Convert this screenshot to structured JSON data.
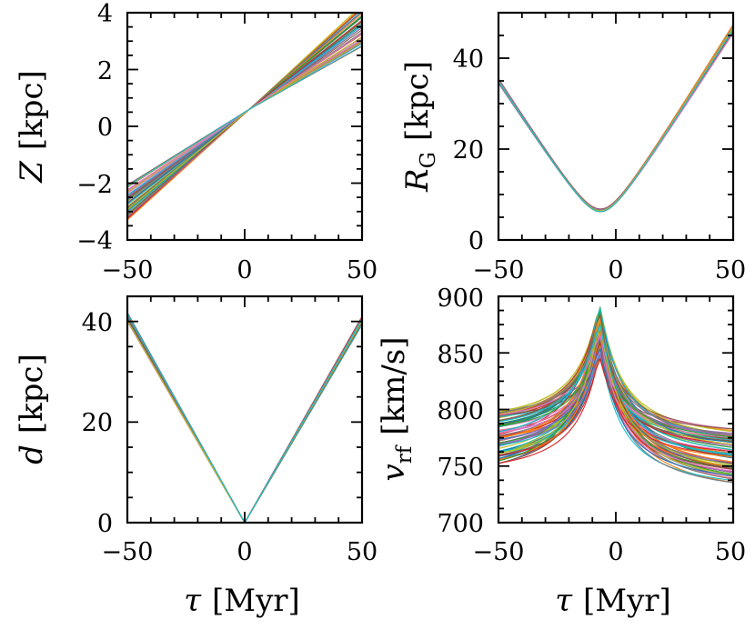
{
  "figure": {
    "xlabel_symbol": "τ",
    "xlabel_unit": "[Myr]"
  },
  "chart_data": [
    {
      "id": "z",
      "type": "line",
      "title": "",
      "xlabel": "τ [Myr]",
      "ylabel": "Z [kpc]",
      "ylabel_symbol": "Z",
      "ylabel_sub": "",
      "ylabel_unit": "[kpc]",
      "xlim": [
        -50,
        50
      ],
      "ylim": [
        -4,
        4
      ],
      "xticks": [
        -50,
        0,
        50
      ],
      "yticks": [
        -4,
        -2,
        0,
        2,
        4
      ],
      "xtick_labels": [
        "−50",
        "0",
        "50"
      ],
      "ytick_labels": [
        "−4",
        "−2",
        "0",
        "2",
        "4"
      ],
      "grid": false,
      "n_trajectories": 60,
      "model": "linear through pivot",
      "pivot": [
        2,
        0.6
      ],
      "range_at_x_min": [
        -3.3,
        -2.0
      ],
      "range_at_x_max": [
        2.8,
        4.3
      ]
    },
    {
      "id": "rg",
      "type": "line",
      "title": "",
      "xlabel": "τ [Myr]",
      "ylabel": "R_G [kpc]",
      "ylabel_symbol": "R",
      "ylabel_sub": "G",
      "ylabel_unit": "[kpc]",
      "xlim": [
        -50,
        50
      ],
      "ylim": [
        0,
        50
      ],
      "xticks": [
        -50,
        0,
        50
      ],
      "yticks": [
        0,
        20,
        40
      ],
      "xtick_labels": [
        "−50",
        "0",
        "50"
      ],
      "ytick_labels": [
        "0",
        "20",
        "40"
      ],
      "grid": false,
      "n_trajectories": 60,
      "model": "hyperbolic V",
      "minimum": [
        -6.5,
        6.5
      ],
      "left_end_value": [
        34.5,
        35.5
      ],
      "right_end_value": [
        45.5,
        47.5
      ]
    },
    {
      "id": "d",
      "type": "line",
      "title": "",
      "xlabel": "τ [Myr]",
      "ylabel": "d [kpc]",
      "ylabel_symbol": "d",
      "ylabel_sub": "",
      "ylabel_unit": "[kpc]",
      "xlim": [
        -50,
        50
      ],
      "ylim": [
        0,
        45
      ],
      "xticks": [
        -50,
        0,
        50
      ],
      "yticks": [
        0,
        20,
        40
      ],
      "xtick_labels": [
        "−50",
        "0",
        "50"
      ],
      "ytick_labels": [
        "0",
        "20",
        "40"
      ],
      "grid": false,
      "n_trajectories": 60,
      "model": "V from origin",
      "minimum": [
        0,
        0
      ],
      "left_end_value": [
        40.0,
        41.8
      ],
      "right_end_value": [
        39.3,
        41.0
      ]
    },
    {
      "id": "vrf",
      "type": "line",
      "title": "",
      "xlabel": "τ [Myr]",
      "ylabel": "v_rf [km/s]",
      "ylabel_symbol": "v",
      "ylabel_sub": "rf",
      "ylabel_unit": "[km/s]",
      "xlim": [
        -50,
        50
      ],
      "ylim": [
        700,
        900
      ],
      "xticks": [
        -50,
        0,
        50
      ],
      "yticks": [
        700,
        750,
        800,
        850,
        900
      ],
      "xtick_labels": [
        "−50",
        "0",
        "50"
      ],
      "ytick_labels": [
        "700",
        "750",
        "800",
        "850",
        "900"
      ],
      "grid": false,
      "n_trajectories": 80,
      "model": "peaked curve",
      "peak_x": -7,
      "peak_range": [
        845,
        895
      ],
      "left_end_range": [
        752,
        800
      ],
      "right_end_range": [
        735,
        785
      ]
    }
  ],
  "colors": [
    "#1f77b4",
    "#ff7f0e",
    "#2ca02c",
    "#d62728",
    "#9467bd",
    "#8c564b",
    "#e377c2",
    "#7f7f7f",
    "#bcbd22",
    "#17becf"
  ]
}
